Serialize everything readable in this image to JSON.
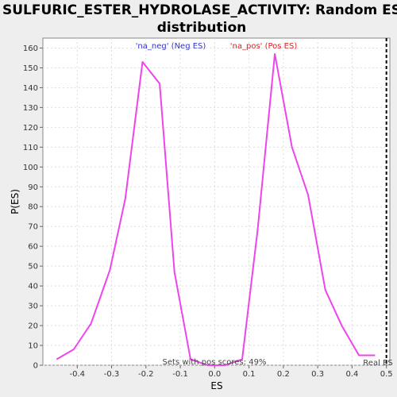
{
  "chart_data": {
    "type": "line",
    "title_line1": "SULFURIC_ESTER_HYDROLASE_ACTIVITY: Random ES",
    "title_line2": "distribution",
    "xlabel": "ES",
    "ylabel": "P(ES)",
    "xlim": [
      -0.5,
      0.51
    ],
    "ylim": [
      0,
      165
    ],
    "xticks": [
      -0.4,
      -0.3,
      -0.2,
      -0.1,
      0.0,
      0.1,
      0.2,
      0.3,
      0.4,
      0.5
    ],
    "xtick_labels": [
      "-0.4",
      "-0.3",
      "-0.2",
      "-0.1",
      "0.0",
      "0.1",
      "0.2",
      "0.3",
      "0.4",
      "0.5"
    ],
    "yticks": [
      0,
      10,
      20,
      30,
      40,
      50,
      60,
      70,
      80,
      90,
      100,
      110,
      120,
      130,
      140,
      150,
      160
    ],
    "grid": true,
    "line_color": "#ee44ee",
    "series": [
      {
        "x": [
          -0.46,
          -0.41,
          -0.36,
          -0.305,
          -0.26,
          -0.21,
          -0.16,
          -0.117,
          -0.07,
          -0.02,
          0.03,
          0.08,
          0.125,
          0.175,
          0.225,
          0.272,
          0.322,
          0.37,
          0.42,
          0.467
        ],
        "y": [
          3,
          8,
          21,
          48,
          84,
          153,
          142,
          47,
          3,
          0,
          0,
          3,
          68,
          157,
          110,
          86,
          38,
          20,
          5,
          5
        ]
      }
    ],
    "legend": {
      "neg_label": "'na_neg' (Neg ES)",
      "pos_label": "'na_pos' (Pos ES)",
      "neg_color": "#3333cc",
      "pos_color": "#dd2222"
    },
    "annotation": "Sets with pos scores: 49%",
    "real_es_label": "Real ES",
    "real_es": 0.5
  }
}
